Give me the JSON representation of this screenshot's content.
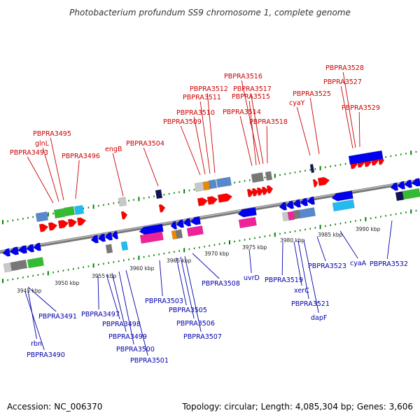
{
  "title": "Photobacterium profundum SS9 chromosome 1, complete genome",
  "footer": {
    "accession": "Accession: NC_006370",
    "summary": "Topology: circular; Length: 4,085,304 bp; Genes: 3,606"
  },
  "colors": {
    "forward_label": "#cc0000",
    "reverse_label": "#0000aa",
    "forward_arrow": "#ff0000",
    "reverse_arrow": "#0000ee",
    "backbone": "#888888",
    "ticks": "#008000"
  },
  "scale_labels": [
    "3945 kbp",
    "3950 kbp",
    "3955 kbp",
    "3960 kbp",
    "3965 kbp",
    "3970 kbp",
    "3975 kbp",
    "3980 kbp",
    "3985 kbp",
    "3990 kbp"
  ],
  "forward_labels": [
    "PBPRA3493",
    "glnL",
    "PBPRA3495",
    "PBPRA3496",
    "engB",
    "PBPRA3504",
    "PBPRA3509",
    "PBPRA3510",
    "PBPRA3511",
    "PBPRA3512",
    "PBPRA3514",
    "PBPRA3515",
    "PBPRA3516",
    "PBPRA3517",
    "PBPRA3518",
    "cyaY",
    "PBPRA3525",
    "PBPRA3527",
    "PBPRA3528",
    "PBPRA3529"
  ],
  "reverse_labels": [
    "PBPRA3491",
    "rbn",
    "PBPRA3490",
    "PBPRA3497",
    "PBPRA3498",
    "PBPRA3499",
    "PBPRA3500",
    "PBPRA3501",
    "PBPRA3503",
    "PBPRA3505",
    "PBPRA3506",
    "PBPRA3507",
    "PBPRA3508",
    "uvrD",
    "PBPRA3519",
    "xerC",
    "PBPRA3521",
    "dapF",
    "PBPRA3523",
    "cyaA",
    "PBPRA3532"
  ]
}
